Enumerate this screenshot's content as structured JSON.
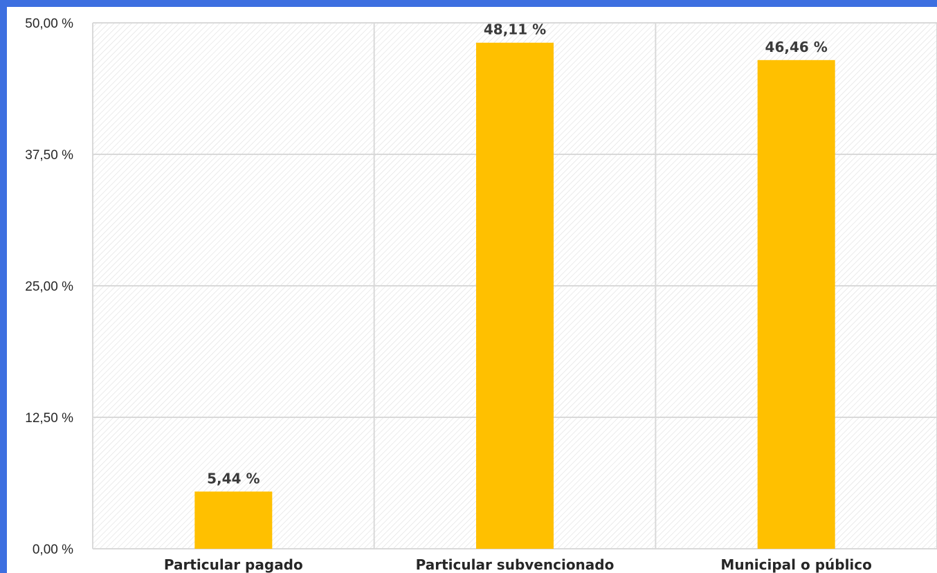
{
  "chart_data": {
    "type": "bar",
    "categories": [
      "Particular pagado",
      "Particular subvencionado",
      "Municipal o público"
    ],
    "values": [
      5.44,
      48.11,
      46.46
    ],
    "data_labels": [
      "5,44 %",
      "48,11 %",
      "46,46 %"
    ],
    "y_ticks": [
      0,
      12.5,
      25,
      37.5,
      50
    ],
    "y_tick_labels": [
      "0,00 %",
      "12,50 %",
      "25,00 %",
      "37,50 %",
      "50,00 %"
    ],
    "ylim": [
      0,
      50
    ],
    "grid": true,
    "title": "",
    "xlabel": "",
    "ylabel": "",
    "colors": {
      "bar": "#ffc000",
      "frame": "#3d6fe0",
      "grid": "#d9d9d9",
      "hatch": "#dedede",
      "text": "#262626"
    }
  }
}
